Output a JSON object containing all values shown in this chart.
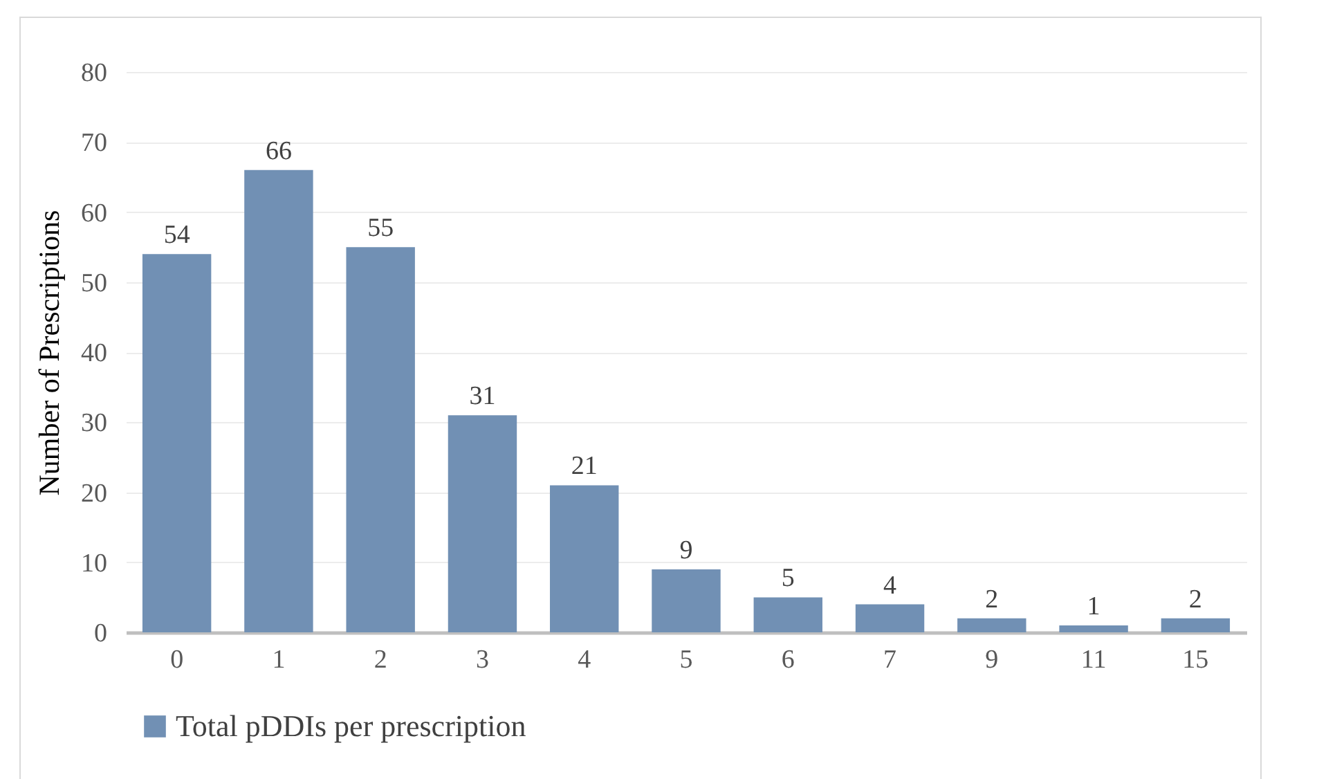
{
  "chart_data": {
    "type": "bar",
    "ylabel": "Number of Prescriptions",
    "categories": [
      "0",
      "1",
      "2",
      "3",
      "4",
      "5",
      "6",
      "7",
      "9",
      "11",
      "15"
    ],
    "series": [
      {
        "name": "Total pDDIs per prescription",
        "color": "#7190b4",
        "values": [
          54,
          66,
          55,
          31,
          21,
          9,
          5,
          4,
          2,
          1,
          2
        ]
      }
    ],
    "ylim": [
      0,
      80
    ],
    "yticks": [
      0,
      10,
      20,
      30,
      40,
      50,
      60,
      70,
      80
    ],
    "grid": "y",
    "legend": "bottom",
    "data_labels": true
  }
}
